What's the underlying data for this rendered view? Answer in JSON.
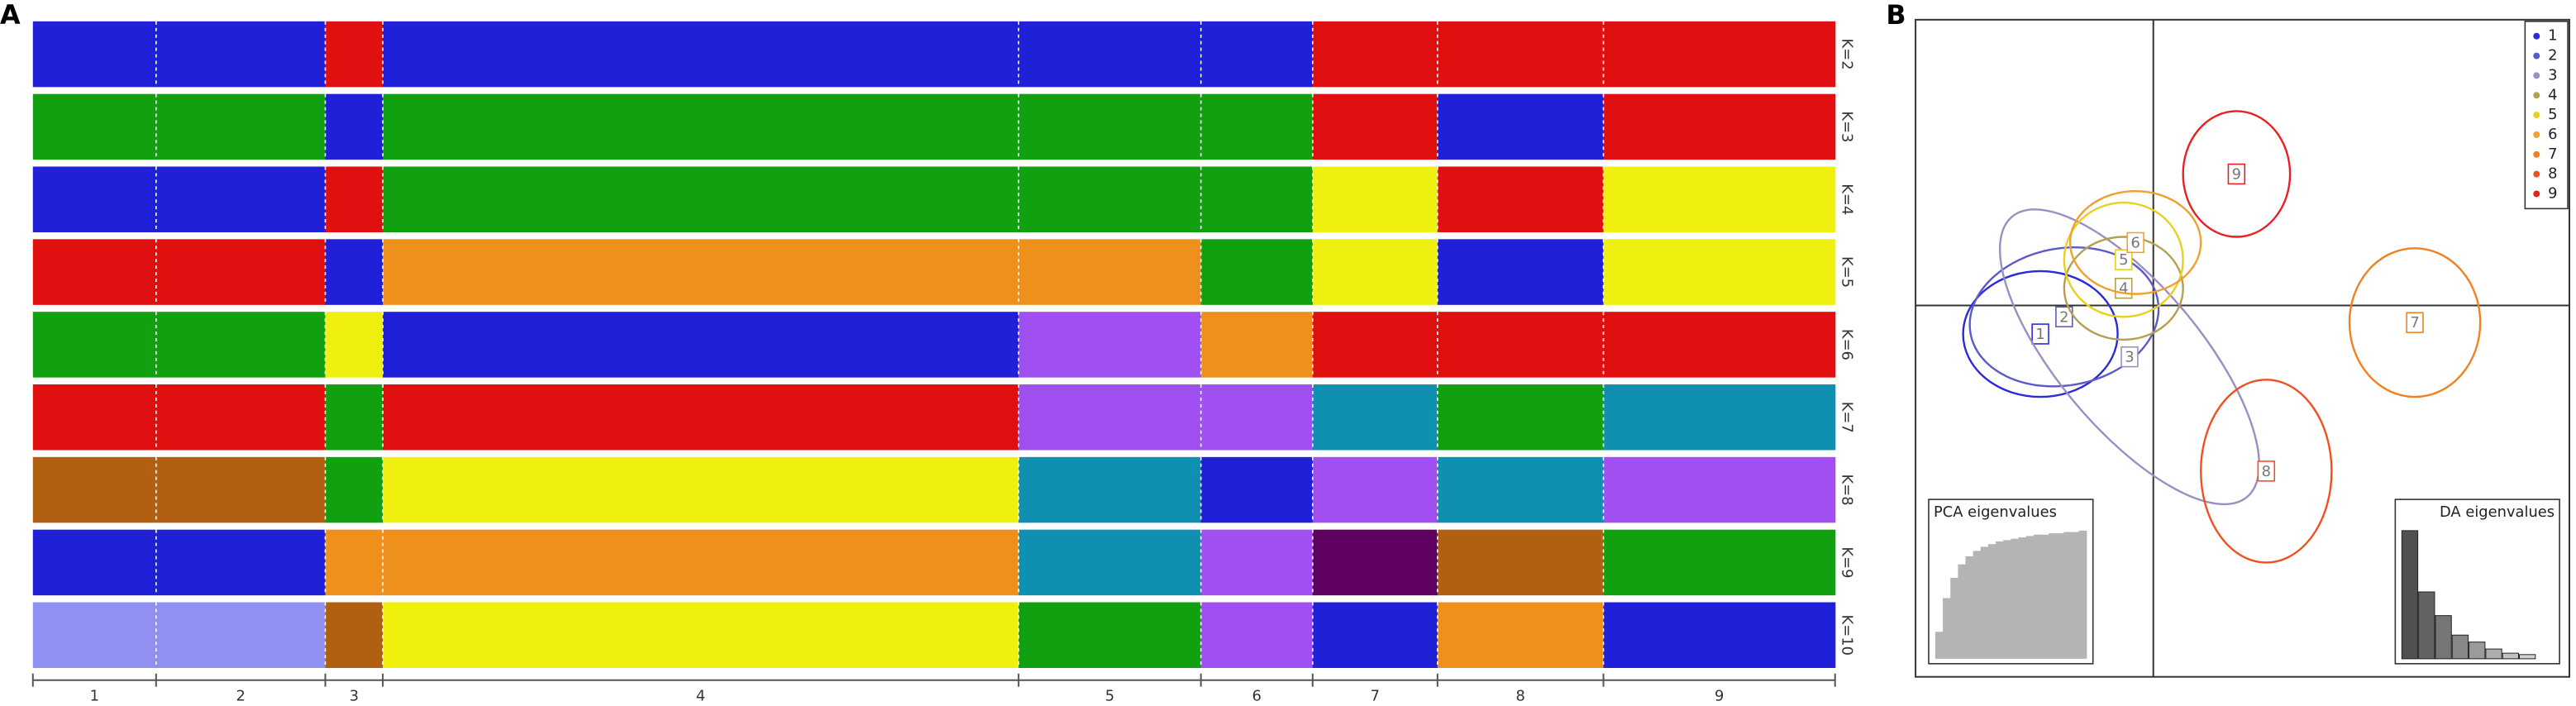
{
  "panel_a": {
    "label": "A",
    "groups": [
      "1",
      "2",
      "3",
      "4",
      "5",
      "6",
      "7",
      "8",
      "9"
    ],
    "group_sizes": [
      75,
      103,
      35,
      387,
      111,
      68,
      76,
      101,
      141
    ],
    "rows": [
      {
        "label": "K=2",
        "colors": [
          "#2020d8",
          "#2020d8",
          "#e01010",
          "#2020d8",
          "#2020d8",
          "#2020d8",
          "#e01010",
          "#e01010",
          "#e01010"
        ]
      },
      {
        "label": "K=3",
        "colors": [
          "#10a010",
          "#10a010",
          "#2020d8",
          "#10a010",
          "#10a010",
          "#10a010",
          "#e01010",
          "#2020d8",
          "#e01010"
        ]
      },
      {
        "label": "K=4",
        "colors": [
          "#2020d8",
          "#2020d8",
          "#e01010",
          "#10a010",
          "#10a010",
          "#10a010",
          "#f0f010",
          "#e01010",
          "#f0f010"
        ]
      },
      {
        "label": "K=5",
        "colors": [
          "#e01010",
          "#e01010",
          "#2020d8",
          "#f0901c",
          "#f0901c",
          "#10a010",
          "#f0f010",
          "#2020d8",
          "#f0f010"
        ]
      },
      {
        "label": "K=6",
        "colors": [
          "#10a010",
          "#10a010",
          "#f0f010",
          "#2020d8",
          "#a050f0",
          "#f0901c",
          "#e01010",
          "#e01010",
          "#e01010"
        ]
      },
      {
        "label": "K=7",
        "colors": [
          "#e01010",
          "#e01010",
          "#10a010",
          "#e01010",
          "#a050f0",
          "#a050f0",
          "#1090b0",
          "#10a010",
          "#1090b0"
        ]
      },
      {
        "label": "K=8",
        "colors": [
          "#b06010",
          "#b06010",
          "#10a010",
          "#f0f010",
          "#1090b0",
          "#2020d8",
          "#a050f0",
          "#1090b0",
          "#a050f0"
        ]
      },
      {
        "label": "K=9",
        "colors": [
          "#2020d8",
          "#2020d8",
          "#f0901c",
          "#f0901c",
          "#1090b0",
          "#a050f0",
          "#600060",
          "#b06010",
          "#10a010"
        ]
      },
      {
        "label": "K=10",
        "colors": [
          "#9090f0",
          "#9090f0",
          "#b06010",
          "#f0f010",
          "#10a010",
          "#a050f0",
          "#2020d8",
          "#f0901c",
          "#2020d8"
        ]
      }
    ]
  },
  "panel_b": {
    "label": "B",
    "xlim": [
      -4,
      7
    ],
    "ylim": [
      -6.5,
      5
    ],
    "legend": "top-right",
    "clusters": [
      {
        "name": "1",
        "color": "#2a2adb",
        "center": [
          -1.9,
          -0.5
        ],
        "radius": [
          1.3,
          1.1
        ],
        "angle": 0
      },
      {
        "name": "2",
        "color": "#5a5ac8",
        "center": [
          -1.5,
          -0.2
        ],
        "radius": [
          1.6,
          1.2
        ],
        "angle": -10
      },
      {
        "name": "3",
        "color": "#9a8fc0",
        "center": [
          -0.4,
          -0.9
        ],
        "radius": [
          1.2,
          3.2
        ],
        "angle": -40
      },
      {
        "name": "4",
        "color": "#b5a050",
        "center": [
          -0.5,
          0.3
        ],
        "radius": [
          1.0,
          0.9
        ],
        "angle": 0
      },
      {
        "name": "5",
        "color": "#e8d020",
        "center": [
          -0.5,
          0.8
        ],
        "radius": [
          1.0,
          1.0
        ],
        "angle": 0
      },
      {
        "name": "6",
        "color": "#f0a030",
        "center": [
          -0.3,
          1.1
        ],
        "radius": [
          1.1,
          0.9
        ],
        "angle": 0
      },
      {
        "name": "7",
        "color": "#f08020",
        "center": [
          4.4,
          -0.3
        ],
        "radius": [
          1.1,
          1.3
        ],
        "angle": 0
      },
      {
        "name": "8",
        "color": "#f05020",
        "center": [
          1.9,
          -2.9
        ],
        "radius": [
          1.1,
          1.6
        ],
        "angle": 0
      },
      {
        "name": "9",
        "color": "#e82020",
        "center": [
          1.4,
          2.3
        ],
        "radius": [
          0.9,
          1.1
        ],
        "angle": 0
      }
    ],
    "pca_inset": {
      "title": "PCA eigenvalues",
      "values": [
        20,
        45,
        60,
        70,
        76,
        80,
        83,
        85,
        87,
        88,
        89,
        90,
        91,
        92,
        92,
        93,
        93,
        94,
        94,
        95
      ]
    },
    "da_inset": {
      "title": "DA eigenvalues",
      "values": [
        92,
        48,
        31,
        17,
        12,
        7,
        4,
        3
      ]
    }
  }
}
